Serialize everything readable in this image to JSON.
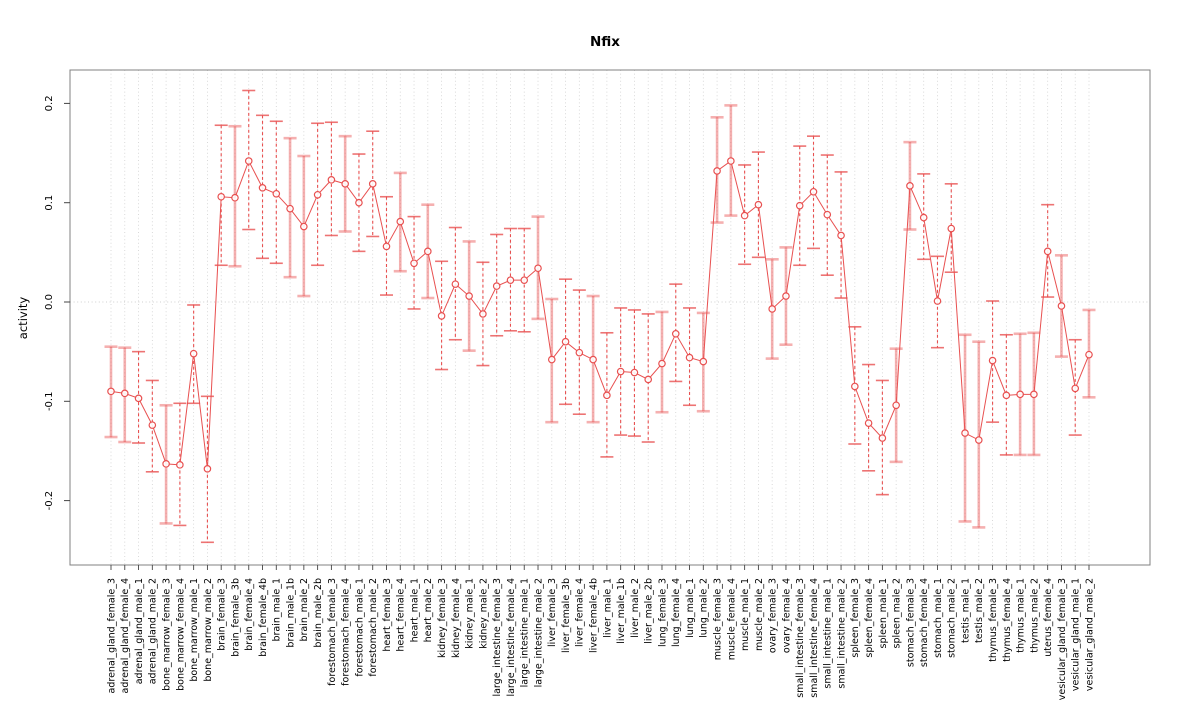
{
  "page": {
    "background": "#ffffff"
  },
  "chart_data": {
    "type": "scatter",
    "subtype": "point-estimates-with-error-bars",
    "title": "Nfix",
    "xlabel": "",
    "ylabel": "activity",
    "ylim": [
      -0.265,
      0.235
    ],
    "yticks": [
      0.2,
      0.1,
      0.0,
      -0.1,
      -0.2
    ],
    "grid": "dotted vertical line per category, dotted horizontal line at 0",
    "legend_position": "none",
    "error_bars": true,
    "colors": {
      "point": "#e85050",
      "line": "#e85050",
      "errorbar_solid": "rgba(232,80,80,0.45)",
      "errorbar_dashed": "#e85050",
      "grid": "#d0d0d0",
      "frame": "#808080",
      "tick": "#444444",
      "text": "#000000",
      "background": "#ffffff"
    },
    "categories": [
      "adrenal_gland_female_3",
      "adrenal_gland_female_4",
      "adrenal_gland_male_1",
      "adrenal_gland_male_2",
      "bone_marrow_female_3",
      "bone_marrow_female_4",
      "bone_marrow_male_1",
      "bone_marrow_male_2",
      "brain_female_3",
      "brain_female_3b",
      "brain_female_4",
      "brain_female_4b",
      "brain_male_1",
      "brain_male_1b",
      "brain_male_2",
      "brain_male_2b",
      "forestomach_female_3",
      "forestomach_female_4",
      "forestomach_male_1",
      "forestomach_male_2",
      "heart_female_3",
      "heart_female_4",
      "heart_male_1",
      "heart_male_2",
      "kidney_female_3",
      "kidney_female_4",
      "kidney_male_1",
      "kidney_male_2",
      "large_intestine_female_3",
      "large_intestine_female_4",
      "large_intestine_male_1",
      "large_intestine_male_2",
      "liver_female_3",
      "liver_female_3b",
      "liver_female_4",
      "liver_female_4b",
      "liver_male_1",
      "liver_male_1b",
      "liver_male_2",
      "liver_male_2b",
      "lung_female_3",
      "lung_female_4",
      "lung_male_1",
      "lung_male_2",
      "muscle_female_3",
      "muscle_female_4",
      "muscle_male_1",
      "muscle_male_2",
      "ovary_female_3",
      "ovary_female_4",
      "small_intestine_female_3",
      "small_intestine_female_4",
      "small_intestine_male_1",
      "small_intestine_male_2",
      "spleen_female_3",
      "spleen_female_4",
      "spleen_male_1",
      "spleen_male_2",
      "stomach_female_3",
      "stomach_female_4",
      "stomach_male_1",
      "stomach_male_2",
      "testis_male_1",
      "testis_male_2",
      "thymus_female_3",
      "thymus_female_4",
      "thymus_male_1",
      "thymus_male_2",
      "uterus_female_4",
      "vesicular_gland_female_3",
      "vesicular_gland_male_1",
      "vesicular_gland_male_2"
    ],
    "series": [
      {
        "name": "activity",
        "values": [
          -0.09,
          -0.092,
          -0.097,
          -0.124,
          -0.163,
          -0.164,
          -0.052,
          -0.168,
          0.106,
          0.105,
          0.142,
          0.115,
          0.109,
          0.094,
          0.076,
          0.108,
          0.123,
          0.119,
          0.1,
          0.119,
          0.056,
          0.081,
          0.039,
          0.051,
          -0.014,
          0.018,
          0.006,
          -0.012,
          0.016,
          0.022,
          0.022,
          0.034,
          -0.058,
          -0.04,
          -0.051,
          -0.058,
          -0.094,
          -0.07,
          -0.071,
          -0.078,
          -0.062,
          -0.032,
          -0.056,
          -0.06,
          0.132,
          0.142,
          0.087,
          0.098,
          -0.007,
          0.006,
          0.097,
          0.111,
          0.088,
          0.067,
          -0.085,
          -0.122,
          -0.137,
          -0.104,
          0.117,
          0.085,
          0.001,
          0.074,
          -0.132,
          -0.139,
          -0.059,
          -0.094,
          -0.093,
          -0.093,
          0.051,
          -0.004,
          -0.087,
          -0.053
        ],
        "ci_low": [
          -0.136,
          -0.141,
          -0.142,
          -0.171,
          -0.223,
          -0.225,
          -0.102,
          -0.242,
          0.037,
          0.036,
          0.073,
          0.044,
          0.039,
          0.025,
          0.006,
          0.037,
          0.067,
          0.071,
          0.051,
          0.066,
          0.007,
          0.031,
          -0.007,
          0.004,
          -0.068,
          -0.038,
          -0.049,
          -0.064,
          -0.034,
          -0.029,
          -0.03,
          -0.017,
          -0.121,
          -0.103,
          -0.113,
          -0.121,
          -0.156,
          -0.134,
          -0.135,
          -0.141,
          -0.111,
          -0.08,
          -0.104,
          -0.11,
          0.08,
          0.087,
          0.038,
          0.045,
          -0.057,
          -0.043,
          0.037,
          0.054,
          0.027,
          0.004,
          -0.143,
          -0.17,
          -0.194,
          -0.161,
          0.073,
          0.043,
          -0.046,
          0.03,
          -0.221,
          -0.227,
          -0.121,
          -0.154,
          -0.154,
          -0.154,
          0.005,
          -0.055,
          -0.134,
          -0.096
        ],
        "ci_high": [
          -0.045,
          -0.046,
          -0.05,
          -0.079,
          -0.104,
          -0.102,
          -0.003,
          -0.095,
          0.178,
          0.177,
          0.213,
          0.188,
          0.182,
          0.165,
          0.147,
          0.18,
          0.181,
          0.167,
          0.149,
          0.172,
          0.106,
          0.13,
          0.086,
          0.098,
          0.041,
          0.075,
          0.061,
          0.04,
          0.068,
          0.074,
          0.074,
          0.086,
          0.003,
          0.023,
          0.012,
          0.006,
          -0.031,
          -0.006,
          -0.008,
          -0.012,
          -0.01,
          0.018,
          -0.006,
          -0.011,
          0.186,
          0.198,
          0.138,
          0.151,
          0.043,
          0.055,
          0.157,
          0.167,
          0.148,
          0.131,
          -0.025,
          -0.063,
          -0.079,
          -0.047,
          0.161,
          0.129,
          0.046,
          0.119,
          -0.033,
          -0.04,
          0.001,
          -0.033,
          -0.032,
          -0.031,
          0.098,
          0.047,
          -0.038,
          -0.008
        ],
        "bar_style": [
          "solid",
          "solid",
          "dashed",
          "dashed",
          "solid",
          "dashed",
          "dashed",
          "dashed",
          "dashed",
          "solid",
          "dashed",
          "dashed",
          "dashed",
          "solid",
          "solid",
          "dashed",
          "dashed",
          "solid",
          "dashed",
          "dashed",
          "dashed",
          "solid",
          "dashed",
          "solid",
          "dashed",
          "dashed",
          "solid",
          "dashed",
          "dashed",
          "dashed",
          "dashed",
          "solid",
          "solid",
          "dashed",
          "dashed",
          "solid",
          "dashed",
          "dashed",
          "dashed",
          "dashed",
          "solid",
          "dashed",
          "dashed",
          "solid",
          "solid",
          "solid",
          "dashed",
          "dashed",
          "solid",
          "solid",
          "dashed",
          "dashed",
          "dashed",
          "dashed",
          "dashed",
          "dashed",
          "dashed",
          "solid",
          "solid",
          "dashed",
          "dashed",
          "dashed",
          "solid",
          "solid",
          "dashed",
          "dashed",
          "solid",
          "solid",
          "dashed",
          "solid",
          "dashed",
          "solid"
        ]
      }
    ]
  }
}
